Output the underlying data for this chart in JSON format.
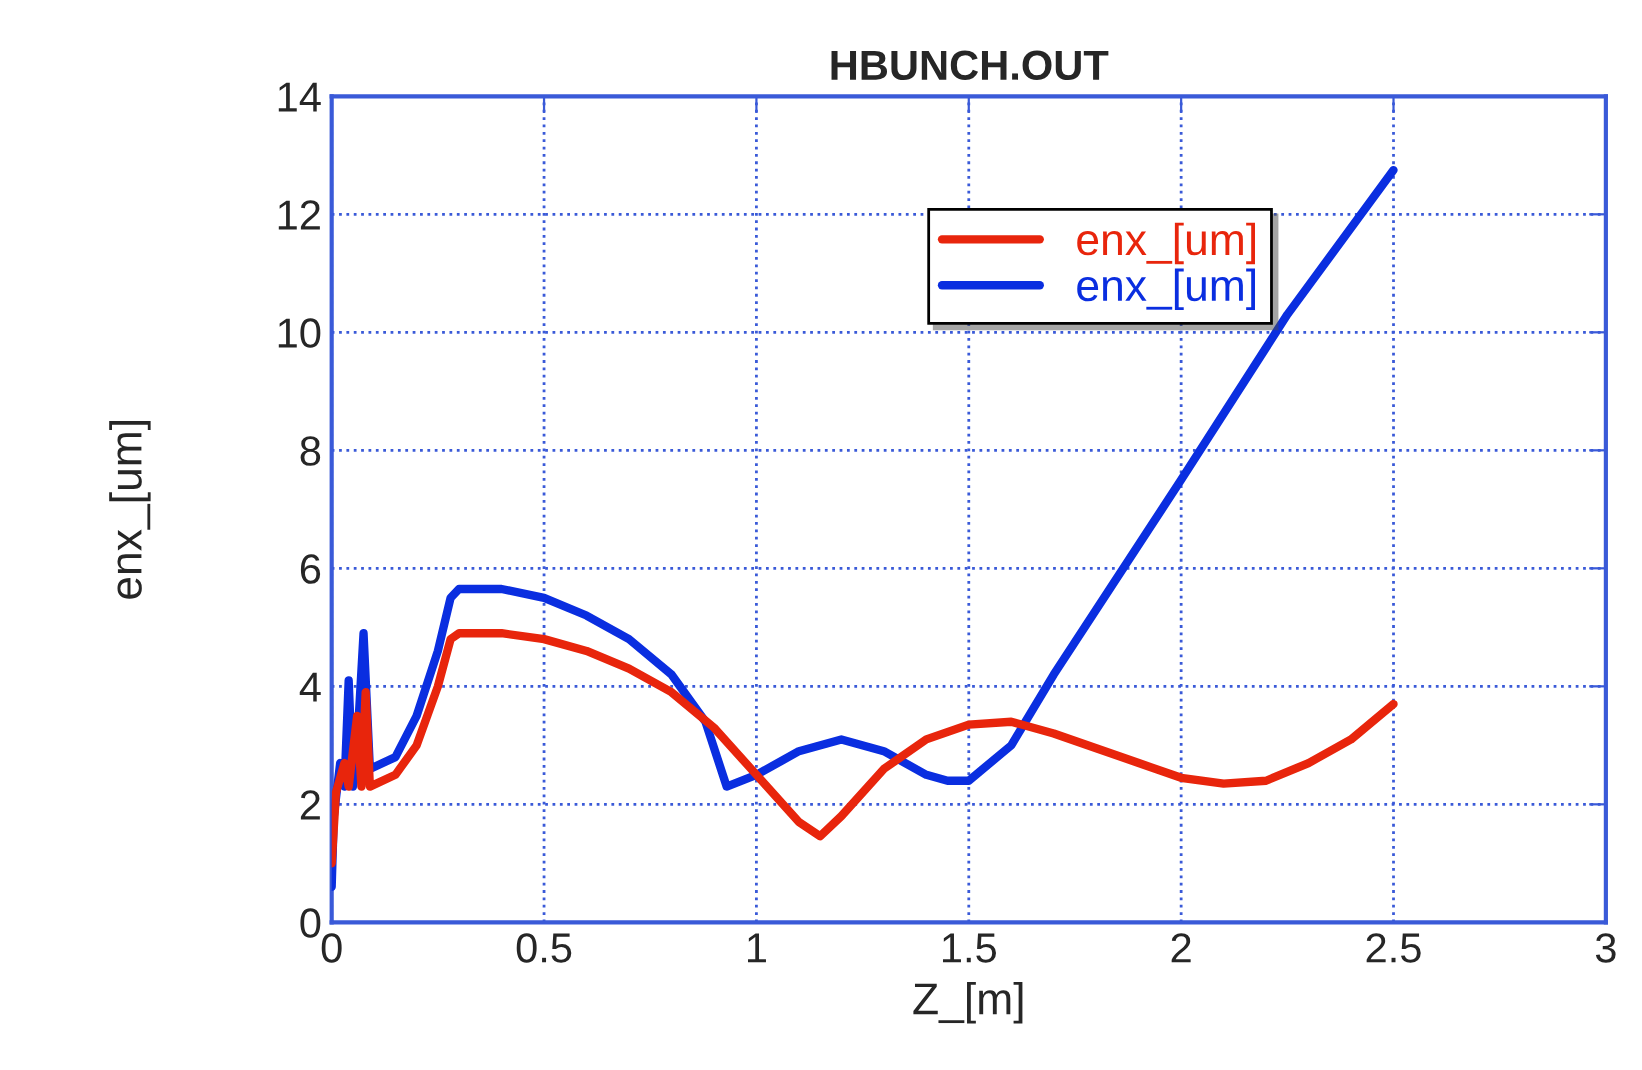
{
  "chart_data": {
    "type": "line",
    "title": "HBUNCH.OUT",
    "xlabel": "Z_[m]",
    "ylabel": "enx_[um]",
    "xlim": [
      0,
      3
    ],
    "xticks": [
      0,
      0.5,
      1,
      1.5,
      2,
      2.5,
      3
    ],
    "ylim": [
      0,
      14
    ],
    "yticks": [
      0,
      2,
      4,
      6,
      8,
      10,
      12,
      14
    ],
    "grid": true,
    "legend": "top right",
    "line_style": "solid",
    "marker": "none",
    "series": [
      {
        "name": "enx_[um]",
        "color": "#e8250c",
        "x": [
          0,
          0.01,
          0.03,
          0.04,
          0.06,
          0.07,
          0.08,
          0.09,
          0.15,
          0.2,
          0.25,
          0.28,
          0.3,
          0.4,
          0.5,
          0.6,
          0.7,
          0.8,
          0.9,
          1.0,
          1.1,
          1.15,
          1.2,
          1.3,
          1.4,
          1.5,
          1.6,
          1.7,
          1.8,
          1.9,
          2.0,
          2.1,
          2.2,
          2.3,
          2.4,
          2.5
        ],
        "values": [
          1.0,
          2.2,
          2.7,
          2.3,
          3.5,
          2.3,
          3.9,
          2.3,
          2.5,
          3.0,
          4.0,
          4.8,
          4.9,
          4.9,
          4.8,
          4.6,
          4.3,
          3.9,
          3.3,
          2.5,
          1.7,
          1.46,
          1.8,
          2.6,
          3.1,
          3.35,
          3.4,
          3.2,
          2.95,
          2.7,
          2.45,
          2.35,
          2.4,
          2.7,
          3.1,
          3.7
        ]
      },
      {
        "name": "enx_[um]",
        "color": "#0a2ee0",
        "x": [
          0,
          0.005,
          0.02,
          0.03,
          0.04,
          0.05,
          0.06,
          0.075,
          0.09,
          0.15,
          0.2,
          0.25,
          0.28,
          0.3,
          0.4,
          0.5,
          0.6,
          0.7,
          0.8,
          0.88,
          0.93,
          1.0,
          1.1,
          1.2,
          1.3,
          1.4,
          1.45,
          1.5,
          1.6,
          1.7,
          2.0,
          2.25,
          2.5
        ],
        "values": [
          0.6,
          1.8,
          2.7,
          2.3,
          4.1,
          2.3,
          3.0,
          4.9,
          2.6,
          2.8,
          3.5,
          4.6,
          5.5,
          5.65,
          5.65,
          5.5,
          5.2,
          4.8,
          4.2,
          3.4,
          2.3,
          2.5,
          2.9,
          3.1,
          2.9,
          2.5,
          2.4,
          2.4,
          3.0,
          4.2,
          7.5,
          10.3,
          12.75
        ]
      }
    ]
  }
}
